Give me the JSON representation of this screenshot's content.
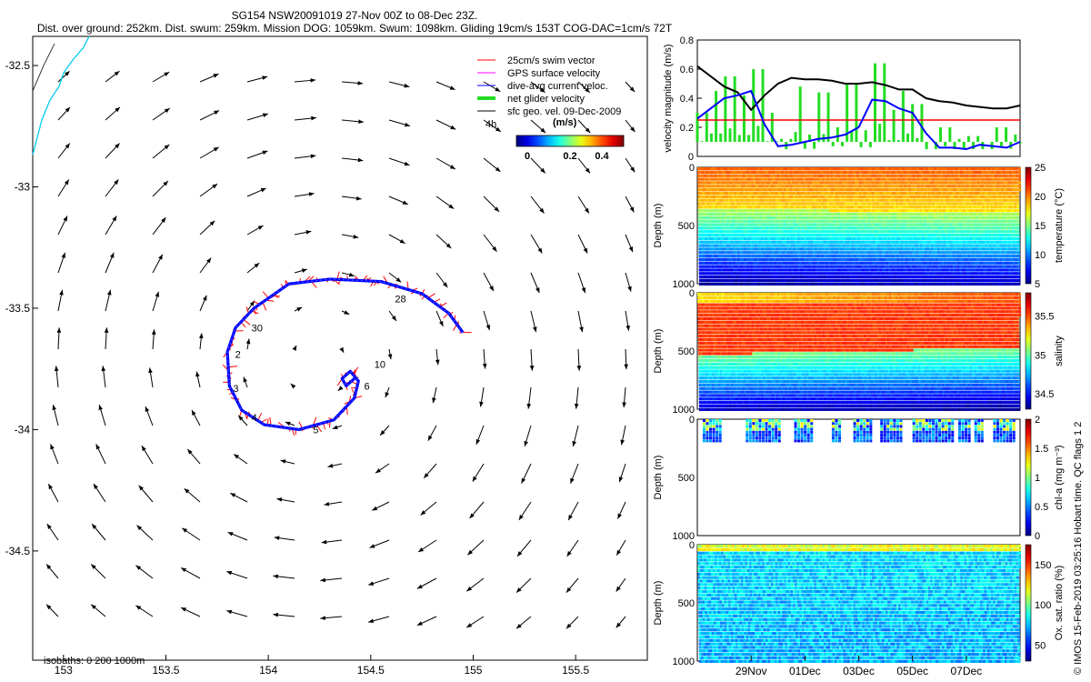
{
  "header": {
    "title_line1": "SG154 NSW20091019 27-Nov 00Z to 08-Dec 23Z.",
    "title_line2": "Dist. over ground: 252km. Dist. swum: 259km. Mission DOG: 1059km. Swum: 1098km. Gliding 19cm/s 153T COG-DAC=1cm/s 72T"
  },
  "credit": "© IMOS 15-Feb-2019 03:25:16 Hobart time. QC flags 1  2",
  "colors": {
    "swim_vector": "#ff0000",
    "gps_surface": "#ff00ff",
    "dive_avg": "#0000ff",
    "net_glider": "#22dd22",
    "sfc_geo": "#000000",
    "coastline": "#00ccee",
    "speed_threshold": "#ff0000"
  },
  "chart_data": [
    {
      "id": "map",
      "type": "scatter",
      "title": "Glider track and surface geostrophic velocity",
      "xlabel": "",
      "ylabel": "",
      "xlim": [
        152.85,
        155.85
      ],
      "ylim": [
        -34.95,
        -32.38
      ],
      "xticks": [
        153,
        153.5,
        154,
        154.5,
        155,
        155.5
      ],
      "yticks": [
        -32.5,
        -33,
        -33.5,
        -34,
        -34.5
      ],
      "legend": {
        "placement": "top-right",
        "entries": [
          "25cm/s swim vector",
          "GPS surface velocity",
          "dive-avg current veloc.",
          "net glider velocity",
          "sfc geo. vel. 09-Dec-2009"
        ],
        "time_marker": "4h"
      },
      "colorbar": {
        "label": "(m/s)",
        "ticks": [
          "0",
          "0.2",
          "0.4"
        ],
        "range": [
          0,
          0.5
        ]
      },
      "isobaths_label": "isobaths: 0   200   1000m",
      "eddy": {
        "center_lon": 154.25,
        "center_lat": -33.72,
        "peak_speed": 0.5
      },
      "track": [
        {
          "lon": 154.95,
          "lat": -33.6
        },
        {
          "lon": 154.88,
          "lat": -33.52
        },
        {
          "lon": 154.75,
          "lat": -33.44
        },
        {
          "lon": 154.55,
          "lat": -33.39
        },
        {
          "lon": 154.3,
          "lat": -33.38
        },
        {
          "lon": 154.1,
          "lat": -33.4
        },
        {
          "lon": 153.93,
          "lat": -33.5
        },
        {
          "lon": 153.84,
          "lat": -33.58
        },
        {
          "lon": 153.8,
          "lat": -33.68
        },
        {
          "lon": 153.81,
          "lat": -33.82
        },
        {
          "lon": 153.87,
          "lat": -33.92
        },
        {
          "lon": 153.98,
          "lat": -33.98
        },
        {
          "lon": 154.15,
          "lat": -34.0
        },
        {
          "lon": 154.32,
          "lat": -33.96
        },
        {
          "lon": 154.42,
          "lat": -33.87
        },
        {
          "lon": 154.44,
          "lat": -33.8
        },
        {
          "lon": 154.4,
          "lat": -33.76
        },
        {
          "lon": 154.36,
          "lat": -33.79
        },
        {
          "lon": 154.38,
          "lat": -33.82
        },
        {
          "lon": 154.42,
          "lat": -33.79
        }
      ],
      "day_labels": [
        {
          "text": "28",
          "lon": 154.6,
          "lat": -33.46
        },
        {
          "text": "30",
          "lon": 153.9,
          "lat": -33.58
        },
        {
          "text": "2",
          "lon": 153.82,
          "lat": -33.69
        },
        {
          "text": "3",
          "lon": 153.81,
          "lat": -33.83
        },
        {
          "text": "4",
          "lon": 153.9,
          "lat": -33.95
        },
        {
          "text": "5",
          "lon": 154.2,
          "lat": -34.0
        },
        {
          "text": "6",
          "lon": 154.45,
          "lat": -33.82
        },
        {
          "text": "10",
          "lon": 154.5,
          "lat": -33.73
        }
      ]
    },
    {
      "id": "velocity",
      "type": "line",
      "xlabel": "",
      "ylabel": "velocity magnitude (m/s)",
      "xlim": [
        0,
        12
      ],
      "ylim": [
        0,
        0.8
      ],
      "yticks": [
        0,
        0.2,
        0.4,
        0.6,
        0.8
      ],
      "threshold": 0.25,
      "series": [
        {
          "name": "sfc geo. vel.",
          "color": "#000000",
          "x": [
            0,
            0.5,
            1,
            1.5,
            2,
            2.5,
            3,
            3.5,
            4,
            4.5,
            5,
            5.5,
            6,
            6.5,
            7,
            7.5,
            8,
            8.5,
            9,
            9.5,
            10,
            10.5,
            11,
            11.5,
            12
          ],
          "values": [
            0.62,
            0.55,
            0.48,
            0.44,
            0.32,
            0.42,
            0.5,
            0.54,
            0.53,
            0.53,
            0.52,
            0.5,
            0.5,
            0.51,
            0.49,
            0.46,
            0.46,
            0.4,
            0.38,
            0.37,
            0.35,
            0.34,
            0.33,
            0.33,
            0.35
          ]
        },
        {
          "name": "dive-avg current",
          "color": "#0000ff",
          "x": [
            0,
            0.5,
            1,
            1.5,
            2,
            2.5,
            3,
            3.5,
            4,
            4.5,
            5,
            5.5,
            6,
            6.5,
            7,
            7.5,
            8,
            8.5,
            9,
            9.5,
            10,
            10.5,
            11,
            11.5,
            12
          ],
          "values": [
            0.26,
            0.33,
            0.4,
            0.42,
            0.45,
            0.22,
            0.07,
            0.08,
            0.1,
            0.12,
            0.13,
            0.15,
            0.2,
            0.39,
            0.38,
            0.33,
            0.3,
            0.16,
            0.06,
            0.06,
            0.05,
            0.08,
            0.07,
            0.06,
            0.1
          ]
        },
        {
          "name": "net glider velocity",
          "color": "#22dd22",
          "x": [
            0,
            0.5,
            1,
            1.5,
            2,
            2.5,
            3,
            3.5,
            4,
            4.5,
            5,
            5.5,
            6,
            6.5,
            7,
            7.5,
            8,
            8.5,
            9,
            9.5,
            10,
            10.5,
            11,
            11.5,
            12
          ],
          "values": [
            0.3,
            0.45,
            0.55,
            0.42,
            0.6,
            0.3,
            0.12,
            0.48,
            0.15,
            0.44,
            0.2,
            0.5,
            0.18,
            0.64,
            0.32,
            0.45,
            0.36,
            0.1,
            0.2,
            0.12,
            0.14,
            0.1,
            0.2,
            0.15,
            0.25
          ]
        }
      ]
    },
    {
      "id": "temperature",
      "type": "heatmap",
      "ylabel": "Depth (m)",
      "colorbar_label": "temperature (°C)",
      "yticks": [
        "0",
        "500",
        "1000"
      ],
      "cbar_ticks": [
        "25",
        "20",
        "15",
        "10",
        "5"
      ],
      "cbar_range": [
        5,
        25
      ],
      "profile": "temp"
    },
    {
      "id": "salinity",
      "type": "heatmap",
      "ylabel": "Depth (m)",
      "colorbar_label": "salinity",
      "yticks": [
        "0",
        "500",
        "1000"
      ],
      "cbar_ticks": [
        "35.5",
        "35",
        "34.5"
      ],
      "cbar_range": [
        34.3,
        35.8
      ],
      "profile": "sal"
    },
    {
      "id": "chla",
      "type": "heatmap",
      "ylabel": "Depth (m)",
      "colorbar_label": "chl-a (mg m⁻³)",
      "yticks": [
        "0",
        "500",
        "1000"
      ],
      "cbar_ticks": [
        "2",
        "1.5",
        "1",
        "0.5",
        "0"
      ],
      "cbar_range": [
        0,
        2
      ],
      "profile": "chla",
      "clusters": [
        [
          0.2,
          0.9
        ],
        [
          1.8,
          3.1
        ],
        [
          3.6,
          4.3
        ],
        [
          5.0,
          5.3
        ],
        [
          5.8,
          6.5
        ],
        [
          6.8,
          7.6
        ],
        [
          8.0,
          9.5
        ],
        [
          9.7,
          10.1
        ],
        [
          10.3,
          10.6
        ],
        [
          11.0,
          11.8
        ]
      ]
    },
    {
      "id": "oxygen",
      "type": "heatmap",
      "ylabel": "Depth (m)",
      "colorbar_label": "Ox. sat. ratio (%)",
      "yticks": [
        "0",
        "500",
        "1000"
      ],
      "cbar_ticks": [
        "150",
        "100",
        "50"
      ],
      "cbar_range": [
        30,
        175
      ],
      "profile": "oxy",
      "xtick_labels": [
        "29Nov",
        "01Dec",
        "03Dec",
        "05Dec",
        "07Dec"
      ],
      "xtick_days": [
        2,
        4,
        6,
        8,
        10
      ]
    }
  ]
}
